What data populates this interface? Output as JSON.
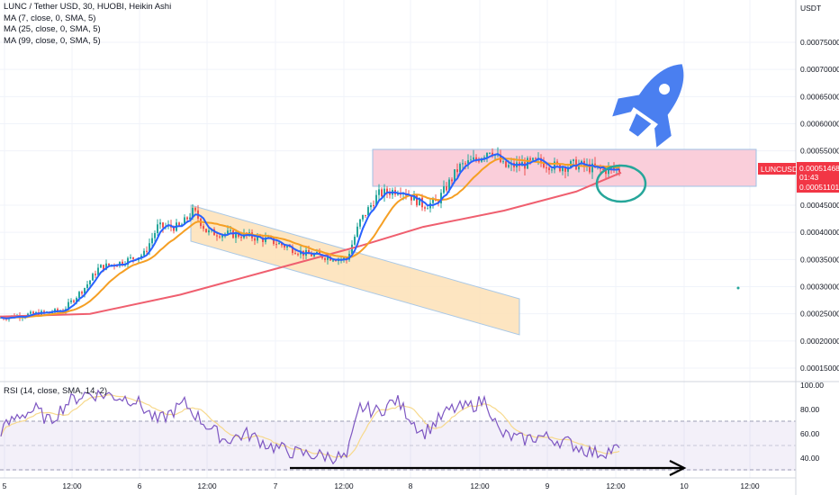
{
  "header": {
    "title": "LUNC / Tether USD, 30, HUOBI, Heikin Ashi",
    "indicators": [
      "MA (7, close, 0, SMA, 5)",
      "MA (25, close, 0, SMA, 5)",
      "MA (99, close, 0, SMA, 5)"
    ],
    "rsi_label": "RSI (14, close, SMA, 14, 2)"
  },
  "price_axis": {
    "currency": "USDT",
    "ticks": [
      "0.00075000",
      "0.00070000",
      "0.00065000",
      "0.00060000",
      "0.00055000",
      "0.00045000",
      "0.00040000",
      "0.00035000",
      "0.00030000",
      "0.00025000",
      "0.00020000",
      "0.00015000"
    ],
    "tick_values": [
      0.00075,
      0.0007,
      0.00065,
      0.0006,
      0.00055,
      0.00045,
      0.0004,
      0.00035,
      0.0003,
      0.00025,
      0.0002,
      0.00015
    ],
    "symbol_tag": "LUNCUSDT",
    "last_price": "0.00051468",
    "countdown": "01:43",
    "ma_price": "0.00051101"
  },
  "rsi_axis": {
    "ticks": [
      "100.00",
      "80.00",
      "60.00",
      "40.00"
    ],
    "tick_values": [
      100,
      80,
      60,
      40
    ]
  },
  "time_axis": {
    "labels": [
      "5",
      "12:00",
      "6",
      "12:00",
      "7",
      "12:00",
      "8",
      "12:00",
      "9",
      "12:00",
      "10",
      "12:00"
    ]
  },
  "colors": {
    "up": "#26a69a",
    "down": "#ef5350",
    "ma7": "#2962ff",
    "ma25": "#f59f24",
    "ma99": "#ef5f6f",
    "rsi": "#7e57c2",
    "rsi_ma": "#f7d98c",
    "channel_fill": "#fde0b6",
    "range_fill": "#f9c6d3",
    "circle": "#26a69a",
    "rocket": "#4a7ff0",
    "tag": "#f23645"
  },
  "annotations": {
    "rocket_icon": "rocket-icon",
    "arrow": "right-arrow"
  },
  "chart_data": {
    "type": "line",
    "title": "LUNC / Tether USD, 30, HUOBI, Heikin Ashi",
    "x": [
      "5",
      "12:00",
      "6",
      "12:00",
      "7",
      "12:00",
      "8",
      "12:00",
      "9",
      "12:00"
    ],
    "series": [
      {
        "name": "MA (7, close, 0, SMA, 5)",
        "values": [
          0.000248,
          0.000262,
          0.000352,
          0.000405,
          0.000392,
          0.000375,
          0.000468,
          0.00047,
          0.00053,
          0.00052
        ]
      },
      {
        "name": "MA (25, close, 0, SMA, 5)",
        "values": [
          0.000245,
          0.000255,
          0.00033,
          0.00039,
          0.00039,
          0.00038,
          0.00041,
          0.000455,
          0.00051,
          0.00052
        ]
      },
      {
        "name": "MA (99, close, 0, SMA, 5)",
        "values": [
          0.000245,
          0.00025,
          0.00027,
          0.0003,
          0.00034,
          0.00036,
          0.00041,
          0.00043,
          0.00048,
          0.00051
        ]
      }
    ],
    "ylim": [
      0.00013,
      0.00081
    ],
    "last_price": 0.00051468,
    "rsi": {
      "name": "RSI (14, close, SMA, 14, 2)",
      "ylim": [
        30,
        100
      ],
      "bands": [
        70,
        30
      ]
    }
  }
}
